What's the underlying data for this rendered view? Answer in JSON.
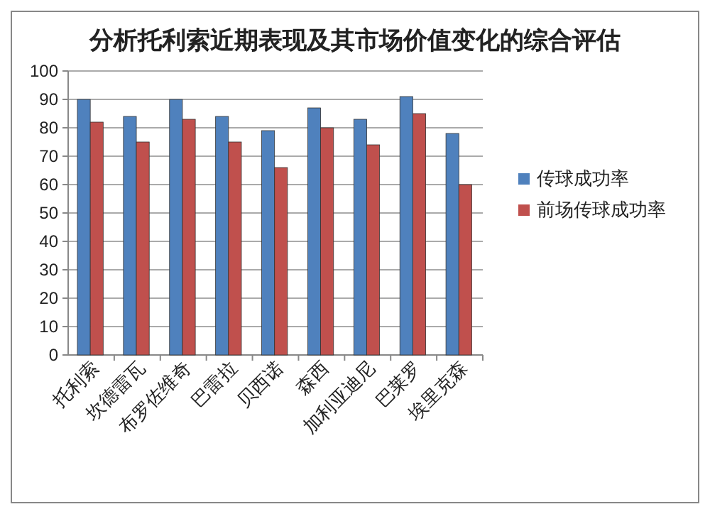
{
  "chart_data": {
    "type": "bar",
    "title": "分析托利索近期表现及其市场价值变化的综合评估",
    "categories": [
      "托利索",
      "坎德雷瓦",
      "布罗佐维奇",
      "巴雷拉",
      "贝西诺",
      "森西",
      "加利亚迪尼",
      "巴莱罗",
      "埃里克森"
    ],
    "series": [
      {
        "name": "传球成功率",
        "color": "#4f81bd",
        "values": [
          90,
          84,
          90,
          84,
          79,
          87,
          83,
          91,
          78
        ]
      },
      {
        "name": "前场传球成功率",
        "color": "#c0504d",
        "values": [
          82,
          75,
          83,
          75,
          66,
          80,
          74,
          85,
          60
        ]
      }
    ],
    "ylim": [
      0,
      100
    ],
    "yticks": [
      0,
      10,
      20,
      30,
      40,
      50,
      60,
      70,
      80,
      90,
      100
    ],
    "grid": "y",
    "legend": "right"
  }
}
